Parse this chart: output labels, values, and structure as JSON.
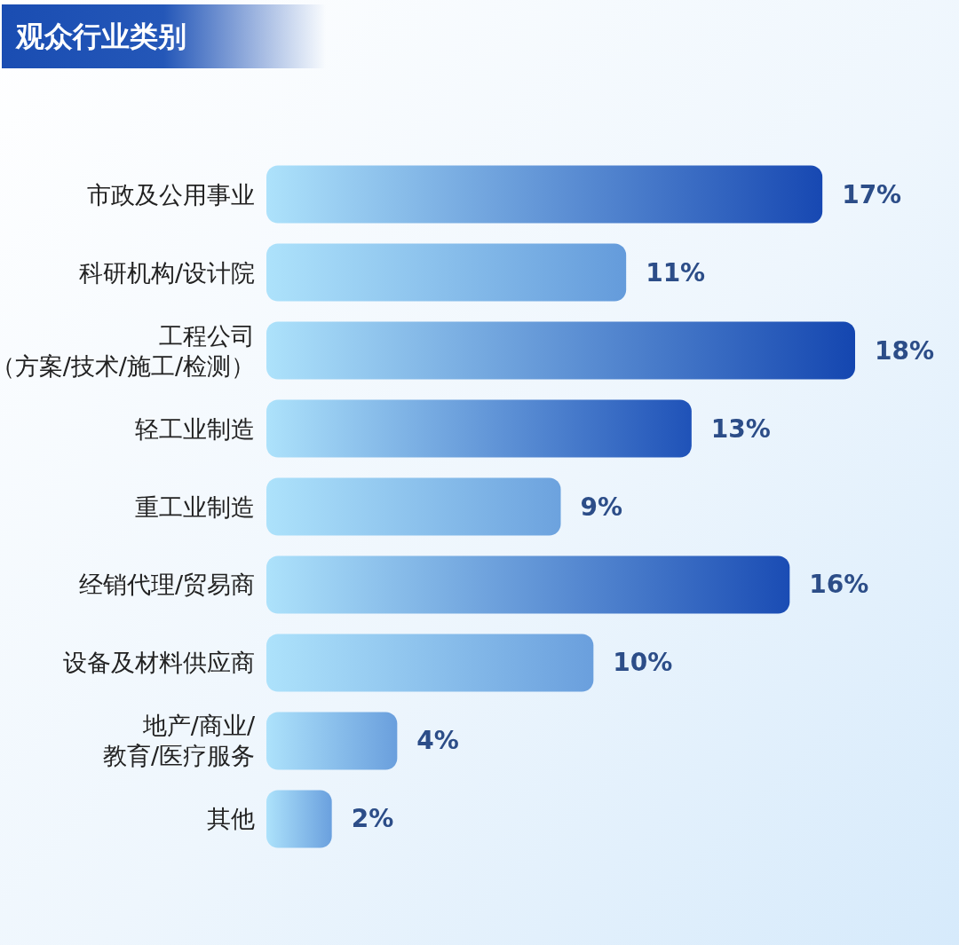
{
  "chart_data": {
    "type": "bar",
    "orientation": "horizontal",
    "title": "观众行业类别",
    "categories": [
      "市政及公用事业",
      "科研机构/设计院",
      "工程公司（方案/技术/施工/检测）",
      "轻工业制造",
      "重工业制造",
      "经销代理/贸易商",
      "设备及材料供应商",
      "地产/商业/教育/医疗服务",
      "其他"
    ],
    "values": [
      17,
      11,
      18,
      13,
      9,
      16,
      10,
      4,
      2
    ],
    "colors": [
      "#1748b2",
      "#649bdb",
      "#1446b0",
      "#1f52b8",
      "#6ca2de",
      "#1a4cb4",
      "#6a9fdd",
      "#6a9fdd",
      "#6aa0de"
    ],
    "value_labels": [
      "17%",
      "11%",
      "18%",
      "13%",
      "9%",
      "16%",
      "10%",
      "4%",
      "2%"
    ]
  }
}
